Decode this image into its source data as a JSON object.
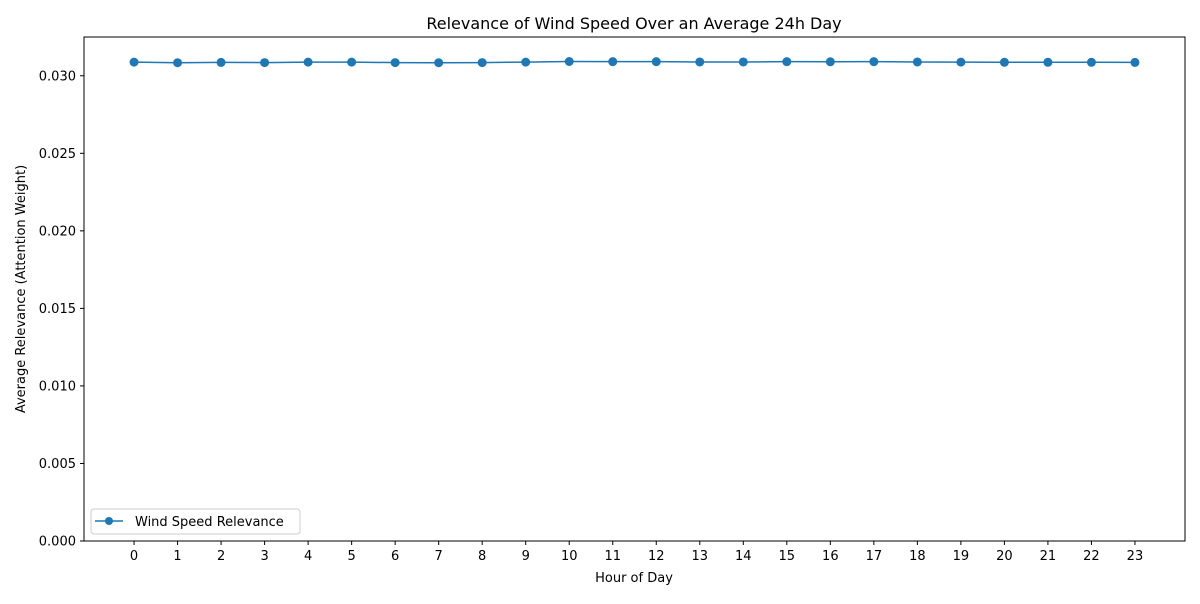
{
  "chart_data": {
    "type": "line",
    "title": "Relevance of Wind Speed Over an Average 24h Day",
    "xlabel": "Hour of Day",
    "ylabel": "Average Relevance (Attention Weight)",
    "x": [
      0,
      1,
      2,
      3,
      4,
      5,
      6,
      7,
      8,
      9,
      10,
      11,
      12,
      13,
      14,
      15,
      16,
      17,
      18,
      19,
      20,
      21,
      22,
      23
    ],
    "x_tick_labels": [
      "0",
      "1",
      "2",
      "3",
      "4",
      "5",
      "6",
      "7",
      "8",
      "9",
      "10",
      "11",
      "12",
      "13",
      "14",
      "15",
      "16",
      "17",
      "18",
      "19",
      "20",
      "21",
      "22",
      "23"
    ],
    "y_ticks": [
      0.0,
      0.005,
      0.01,
      0.015,
      0.02,
      0.025,
      0.03
    ],
    "y_tick_labels": [
      "0.000",
      "0.005",
      "0.010",
      "0.015",
      "0.020",
      "0.025",
      "0.030"
    ],
    "xlim": [
      -1.15,
      24.15
    ],
    "ylim": [
      0.0,
      0.0325
    ],
    "grid": false,
    "legend_position": "lower-left",
    "series": [
      {
        "name": "Wind Speed Relevance",
        "color": "#1f77b4",
        "marker": "circle",
        "values": [
          0.03088,
          0.03084,
          0.03086,
          0.03085,
          0.03088,
          0.03088,
          0.03085,
          0.03084,
          0.03085,
          0.03088,
          0.03092,
          0.03091,
          0.03091,
          0.03089,
          0.03089,
          0.03091,
          0.0309,
          0.03091,
          0.03089,
          0.03088,
          0.03087,
          0.03087,
          0.03087,
          0.03086
        ]
      }
    ]
  }
}
